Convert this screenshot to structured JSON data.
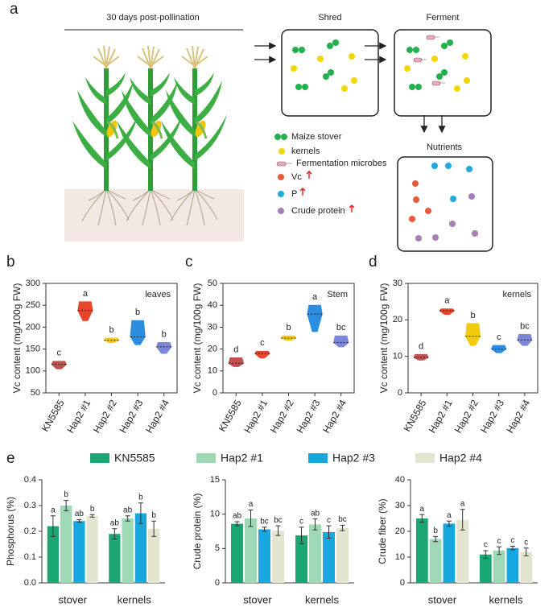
{
  "panel_labels": [
    "a",
    "b",
    "c",
    "d",
    "e"
  ],
  "diagram": {
    "timeline_label": "30 days post-pollination",
    "steps": [
      "Shred",
      "Ferment",
      "Nutrients"
    ],
    "legend": [
      "Maize stover",
      "kernels",
      "Fermentation microbes",
      "Vc",
      "P",
      "Crude protein"
    ]
  },
  "chart_data": [
    {
      "type": "violin",
      "ylabel": "Vc content (mg/100g FW)",
      "annotation": "leaves",
      "categories": [
        "KN5585",
        "Hap2 #1",
        "Hap2 #2",
        "Hap2 #3",
        "Hap2 #4"
      ],
      "colors": [
        "#c0504d",
        "#e8452c",
        "#f2cc0c",
        "#2b8ee0",
        "#7e86d8"
      ],
      "values": [
        115,
        238,
        170,
        178,
        155
      ],
      "mins": [
        105,
        215,
        165,
        160,
        140
      ],
      "maxs": [
        122,
        258,
        175,
        215,
        165
      ],
      "letters": [
        "c",
        "a",
        "b",
        "b",
        "b"
      ],
      "ylim": [
        50,
        300
      ],
      "yticks": [
        50,
        100,
        150,
        200,
        250,
        300
      ]
    },
    {
      "type": "violin",
      "ylabel": "Vc content (mg/100g FW)",
      "annotation": "Stem",
      "categories": [
        "KN5585",
        "Hap2 #1",
        "Hap2 #2",
        "Hap2 #3",
        "Hap2 #4"
      ],
      "colors": [
        "#c0504d",
        "#e8452c",
        "#f2cc0c",
        "#2b8ee0",
        "#7e86d8"
      ],
      "values": [
        13.5,
        18,
        25,
        36,
        23
      ],
      "mins": [
        12,
        16,
        24,
        28,
        21
      ],
      "maxs": [
        16,
        19,
        26,
        40,
        26
      ],
      "letters": [
        "d",
        "c",
        "b",
        "a",
        "bc"
      ],
      "ylim": [
        0,
        50
      ],
      "yticks": [
        0,
        10,
        20,
        30,
        40,
        50
      ]
    },
    {
      "type": "violin",
      "ylabel": "Vc content (mg/100g FW)",
      "annotation": "kernels",
      "categories": [
        "KN5585",
        "Hap2 #1",
        "Hap2 #2",
        "Hap2 #3",
        "Hap2 #4"
      ],
      "colors": [
        "#c0504d",
        "#e8452c",
        "#f2cc0c",
        "#2b8ee0",
        "#7e86d8"
      ],
      "values": [
        9.7,
        22.5,
        15.5,
        12,
        14.5
      ],
      "mins": [
        9,
        21.5,
        13,
        11,
        13
      ],
      "maxs": [
        10.5,
        23,
        19,
        13,
        16
      ],
      "letters": [
        "d",
        "a",
        "b",
        "c",
        "bc"
      ],
      "ylim": [
        0,
        30
      ],
      "yticks": [
        0,
        10,
        20,
        30
      ]
    },
    {
      "type": "bar",
      "ylabel": "Phosphorus (%)",
      "categories": [
        "stover",
        "kernels"
      ],
      "series": [
        {
          "name": "KN5585",
          "color": "#1aa774",
          "values": [
            0.22,
            0.19
          ],
          "errors": [
            0.04,
            0.02
          ],
          "letters": [
            "a",
            "ab"
          ]
        },
        {
          "name": "Hap2 #1",
          "color": "#9ed8b4",
          "values": [
            0.3,
            0.25
          ],
          "errors": [
            0.02,
            0.01
          ],
          "letters": [
            "b",
            "ab"
          ]
        },
        {
          "name": "Hap2 #3",
          "color": "#17a8e0",
          "values": [
            0.24,
            0.27
          ],
          "errors": [
            0.005,
            0.04
          ],
          "letters": [
            "ab",
            "b"
          ]
        },
        {
          "name": "Hap2 #4",
          "color": "#e4e5d0",
          "values": [
            0.26,
            0.21
          ],
          "errors": [
            0.005,
            0.03
          ],
          "letters": [
            "b",
            "b"
          ]
        }
      ],
      "ylim": [
        0,
        0.4
      ],
      "yticks": [
        {
          "value": 0,
          "label": "0.0"
        },
        0.1,
        0.2,
        0.3,
        0.4
      ]
    },
    {
      "type": "bar",
      "ylabel": "Crude protein (%)",
      "categories": [
        "stover",
        "kernels"
      ],
      "series": [
        {
          "color": "#1aa774",
          "values": [
            8.6,
            6.9
          ],
          "errors": [
            0.3,
            1.2
          ],
          "letters": [
            "ab",
            "c"
          ]
        },
        {
          "color": "#9ed8b4",
          "values": [
            9.4,
            8.5
          ],
          "errors": [
            1.2,
            0.8
          ],
          "letters": [
            "a",
            "ab"
          ]
        },
        {
          "color": "#17a8e0",
          "values": [
            7.8,
            7.4
          ],
          "errors": [
            0.3,
            0.9
          ],
          "letters": [
            "bc",
            "c"
          ]
        },
        {
          "color": "#e4e5d0",
          "values": [
            7.6,
            8
          ],
          "errors": [
            0.7,
            0.4
          ],
          "letters": [
            "bc",
            "bc"
          ]
        }
      ],
      "ylim": [
        0,
        15
      ],
      "yticks": [
        0,
        5,
        10,
        15
      ]
    },
    {
      "type": "bar",
      "ylabel": "Crude fiber (%)",
      "categories": [
        "stover",
        "kernels"
      ],
      "series": [
        {
          "color": "#1aa774",
          "values": [
            25,
            11
          ],
          "errors": [
            1.5,
            1.5
          ],
          "letters": [
            "a",
            "c"
          ]
        },
        {
          "color": "#9ed8b4",
          "values": [
            17,
            12.5
          ],
          "errors": [
            1,
            1.5
          ],
          "letters": [
            "b",
            "c"
          ]
        },
        {
          "color": "#17a8e0",
          "values": [
            23,
            13.5
          ],
          "errors": [
            1,
            0.7
          ],
          "letters": [
            "a",
            "c"
          ]
        },
        {
          "color": "#e4e5d0",
          "values": [
            24.5,
            12
          ],
          "errors": [
            4,
            1.5
          ],
          "letters": [
            "a",
            "c"
          ]
        }
      ],
      "ylim": [
        0,
        40
      ],
      "yticks": [
        0,
        10,
        20,
        30,
        40
      ]
    }
  ]
}
